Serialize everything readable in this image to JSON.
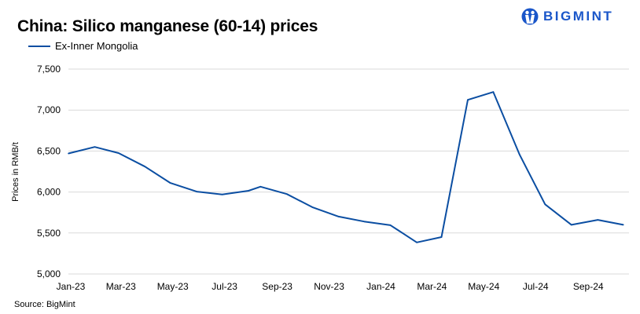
{
  "chart_data": {
    "type": "line",
    "title": "China: Silico manganese (60-14) prices",
    "xlabel": "",
    "ylabel": "Prices in RMB/t",
    "ylim": [
      5000,
      7500
    ],
    "yticks": [
      5000,
      5500,
      6000,
      6500,
      7000,
      7500
    ],
    "ytick_labels": [
      "5,000",
      "5,500",
      "6,000",
      "6,500",
      "7,000",
      "7,500"
    ],
    "xticks": [
      "2023-01-01",
      "2023-03-01",
      "2023-05-01",
      "2023-07-01",
      "2023-09-01",
      "2023-11-01",
      "2024-01-01",
      "2024-03-01",
      "2024-05-01",
      "2024-07-01",
      "2024-09-01"
    ],
    "xtick_labels": [
      "Jan-23",
      "Mar-23",
      "May-23",
      "Jul-23",
      "Sep-23",
      "Nov-23",
      "Jan-24",
      "Mar-24",
      "May-24",
      "Jul-24",
      "Sep-24"
    ],
    "grid": "horizontal",
    "legend_position": "top-left",
    "series": [
      {
        "name": "Ex-Inner Mongolia",
        "color": "#0b4ea2",
        "x": [
          "2023-01-01",
          "2023-02-01",
          "2023-03-01",
          "2023-04-01",
          "2023-05-01",
          "2023-06-01",
          "2023-07-01",
          "2023-08-01",
          "2023-08-15",
          "2023-09-15",
          "2023-10-15",
          "2023-11-15",
          "2023-12-15",
          "2024-01-15",
          "2024-02-15",
          "2024-03-15",
          "2024-04-15",
          "2024-05-15",
          "2024-06-15",
          "2024-07-15",
          "2024-08-15",
          "2024-09-15",
          "2024-10-15"
        ],
        "values": [
          6470,
          6550,
          6475,
          6310,
          6110,
          6005,
          5970,
          6015,
          6065,
          5975,
          5815,
          5700,
          5640,
          5595,
          5385,
          5450,
          7125,
          7220,
          6455,
          5850,
          5600,
          5660,
          5600
        ]
      }
    ]
  },
  "source": "Source: BigMint",
  "logo_text": "BIGMINT",
  "colors": {
    "line": "#0b4ea2",
    "grid": "#d9d9d9",
    "logo": "#1a56c9"
  }
}
